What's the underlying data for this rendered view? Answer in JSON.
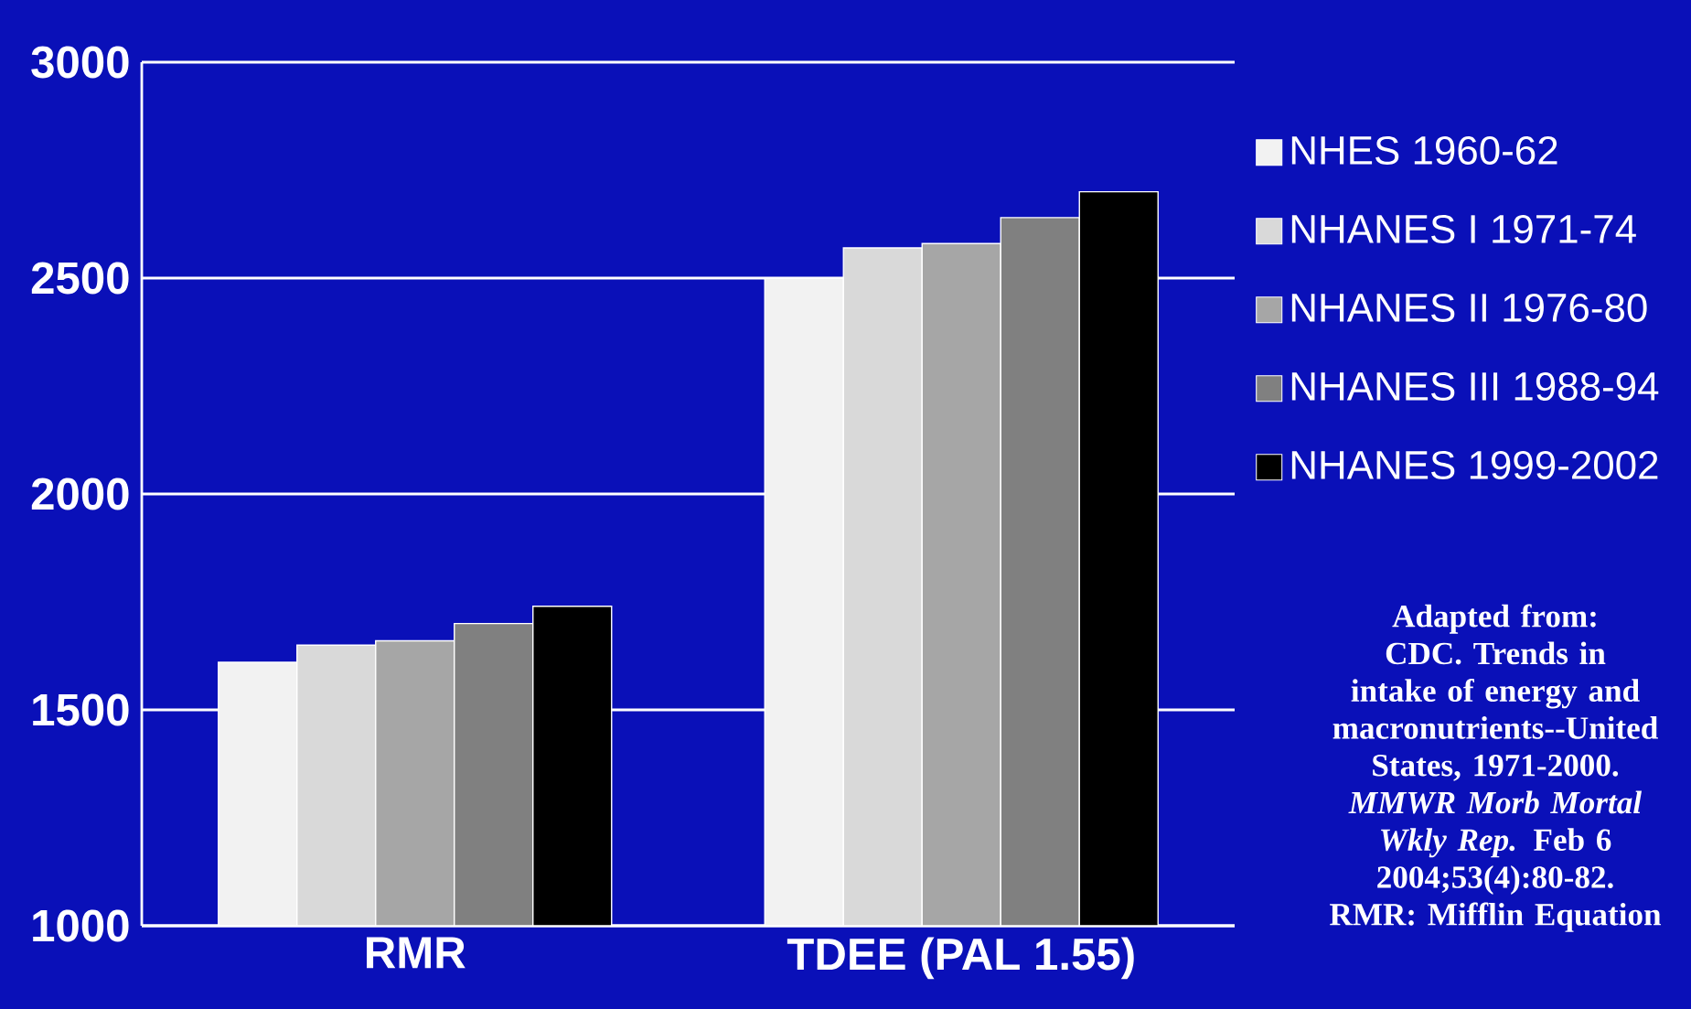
{
  "chart_data": {
    "type": "bar",
    "categories": [
      "RMR",
      "TDEE (PAL 1.55)"
    ],
    "series": [
      {
        "name": "NHES 1960-62",
        "color": "#f2f2f2",
        "values": [
          1610,
          2500
        ]
      },
      {
        "name": "NHANES I 1971-74",
        "color": "#d9d9d9",
        "values": [
          1650,
          2570
        ]
      },
      {
        "name": "NHANES II 1976-80",
        "color": "#a6a6a6",
        "values": [
          1660,
          2580
        ]
      },
      {
        "name": "NHANES III 1988-94",
        "color": "#808080",
        "values": [
          1700,
          2640
        ]
      },
      {
        "name": "NHANES 1999-2002",
        "color": "#000000",
        "values": [
          1740,
          2700
        ]
      }
    ],
    "ylim": [
      1000,
      3000
    ],
    "yticks": [
      1000,
      1500,
      2000,
      2500,
      3000
    ],
    "grid": "y",
    "legend": "right",
    "annotations": [
      "Adapted from: CDC. Trends in intake of energy and macronutrients--United States, 1971-2000. *MMWR Morb Mortal Wkly Rep.* Feb 6 2004;53(4):80-82. RMR: Mifflin Equation"
    ]
  }
}
